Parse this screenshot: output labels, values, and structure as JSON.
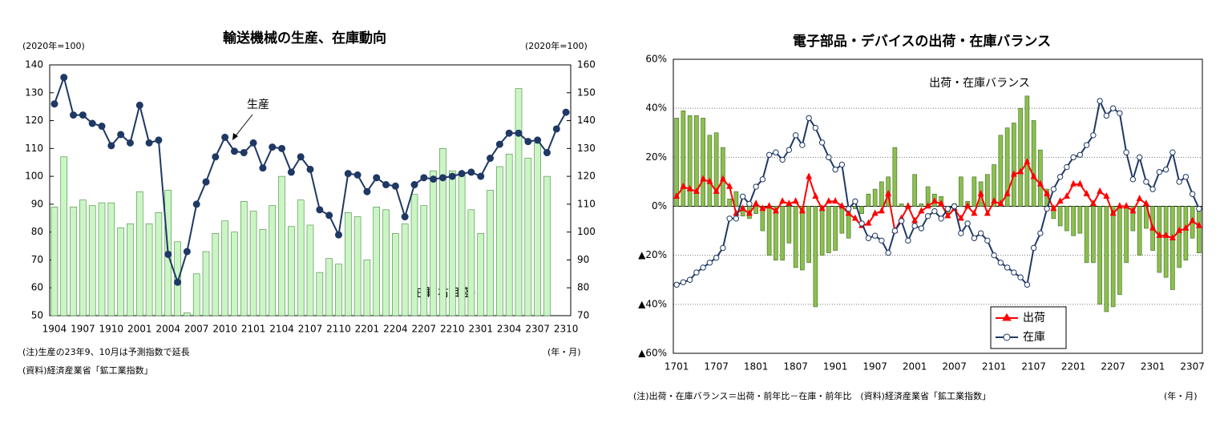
{
  "chart_data": [
    {
      "type": "bar_line",
      "title": "輸送機械の生産、在庫動向",
      "y_unit": "(2020年=100)",
      "y2_unit": "(2020年=100)",
      "x_unit": "(年・月)",
      "notes": [
        "(注)生産の23年9、10月は予測指数で延長",
        "(資料)経済産業省「鉱工業指数」"
      ],
      "categories": [
        "1904",
        null,
        null,
        "1907",
        null,
        null,
        "1910",
        null,
        null,
        "2001",
        null,
        null,
        "2004",
        null,
        null,
        "2007",
        null,
        null,
        "2010",
        null,
        null,
        "2101",
        null,
        null,
        "2104",
        null,
        null,
        "2107",
        null,
        null,
        "2110",
        null,
        null,
        "2201",
        null,
        null,
        "2204",
        null,
        null,
        "2207",
        null,
        null,
        "2210",
        null,
        null,
        "2301",
        null,
        null,
        "2304",
        null,
        null,
        "2307",
        null,
        null,
        "2310"
      ],
      "ylim": [
        50,
        140
      ],
      "yticks": [
        50,
        60,
        70,
        80,
        90,
        100,
        110,
        120,
        130,
        140
      ],
      "y2lim": [
        70,
        160
      ],
      "y2ticks": [
        70,
        80,
        90,
        100,
        110,
        120,
        130,
        140,
        150,
        160
      ],
      "grid": false,
      "series": [
        {
          "name": "在庫(右目盛)",
          "kind": "bar",
          "axis": "y2",
          "color": "#ccf5c6",
          "stroke": "#3f8a3a",
          "values": [
            109,
            127,
            109,
            111.5,
            109.5,
            110.5,
            110.5,
            101.5,
            103,
            114.5,
            103,
            107,
            115,
            96.5,
            71,
            85,
            93,
            99.5,
            104,
            100,
            111,
            107.5,
            101,
            109.5,
            120,
            102,
            111.5,
            102.5,
            85.5,
            90.5,
            88.5,
            107,
            105.5,
            90,
            109,
            108,
            99.5,
            103,
            113.5,
            109.5,
            122,
            130,
            122,
            121,
            108,
            99.5,
            115,
            123.5,
            128,
            151.5,
            126.5,
            132,
            120,
            null,
            null
          ]
        },
        {
          "name": "生産",
          "kind": "line",
          "axis": "y",
          "color": "#1f3864",
          "marker": "circle",
          "marker_fill": "#1f3864",
          "values": [
            126,
            135.5,
            122,
            122,
            119,
            118,
            111,
            115,
            112,
            125.5,
            112,
            113,
            72,
            62,
            73,
            90,
            98,
            107,
            114,
            109,
            108.5,
            112,
            103,
            110.5,
            110,
            101.5,
            107,
            102.5,
            88,
            86,
            79,
            101,
            100.5,
            94.5,
            99.5,
            97,
            96.5,
            85.5,
            97,
            99.5,
            99,
            99.5,
            100,
            101,
            101.5,
            100,
            106.5,
            111.5,
            115.5,
            115.5,
            112.5,
            113,
            108.5,
            117,
            123
          ]
        }
      ]
    },
    {
      "type": "bar_line",
      "title": "電子部品・デバイスの出荷・在庫バランス",
      "x_unit": "(年・月)",
      "notes": [
        "(注)出荷・在庫バランス＝出荷・前年比－在庫・前年比　(資料)経済産業省「鉱工業指数」"
      ],
      "categories": [
        "1701",
        null,
        null,
        null,
        null,
        null,
        "1707",
        null,
        null,
        null,
        null,
        null,
        "1801",
        null,
        null,
        null,
        null,
        null,
        "1807",
        null,
        null,
        null,
        null,
        null,
        "1901",
        null,
        null,
        null,
        null,
        null,
        "1907",
        null,
        null,
        null,
        null,
        null,
        "2001",
        null,
        null,
        null,
        null,
        null,
        "2007",
        null,
        null,
        null,
        null,
        null,
        "2101",
        null,
        null,
        null,
        null,
        null,
        "2107",
        null,
        null,
        null,
        null,
        null,
        "2201",
        null,
        null,
        null,
        null,
        null,
        "2207",
        null,
        null,
        null,
        null,
        null,
        "2301",
        null,
        null,
        null,
        null,
        null,
        "2307",
        null
      ],
      "ylim": [
        -60,
        60
      ],
      "yticks": [
        {
          "value": -60,
          "label": "▲60%"
        },
        {
          "value": -40,
          "label": "▲40%"
        },
        {
          "value": -20,
          "label": "▲20%"
        },
        {
          "value": 0,
          "label": "0%"
        },
        {
          "value": 20,
          "label": "20%"
        },
        {
          "value": 40,
          "label": "40%"
        },
        {
          "value": 60,
          "label": "60%"
        }
      ],
      "grid": true,
      "legend": "bottom-center",
      "series": [
        {
          "name": "出荷・在庫バランス",
          "kind": "bar",
          "axis": "y",
          "color": "#8cbf4f",
          "stroke": "#3d6b1f",
          "legend": false,
          "values": [
            36,
            39,
            37,
            37,
            36,
            29,
            30,
            24,
            3,
            6,
            -4,
            -5,
            -3,
            -10,
            -20,
            -22,
            -22,
            -15,
            -25,
            -26,
            -23,
            -41,
            -20,
            -19,
            -18,
            -11,
            -13,
            -1,
            -3,
            5,
            7,
            10,
            12,
            24,
            1,
            -1,
            13,
            1,
            8,
            5,
            4,
            -3,
            1,
            12,
            2,
            12,
            10,
            13,
            17,
            29,
            32,
            34,
            40,
            45,
            35,
            23,
            7,
            -5,
            -8,
            -10,
            -12,
            -11,
            -23,
            -23,
            -40,
            -43,
            -41,
            -36,
            -23,
            -10,
            -20,
            -9,
            -18,
            -27,
            -29,
            -34,
            -25,
            -22,
            -13,
            -19
          ]
        },
        {
          "name": "出荷",
          "kind": "line",
          "axis": "y",
          "color": "#ff0000",
          "marker": "triangle",
          "marker_fill": "#ff0000",
          "legend": true,
          "values": [
            4,
            8,
            7,
            6,
            11,
            10,
            6,
            11,
            8,
            -3,
            -1,
            -3,
            1,
            -1,
            0,
            -2,
            2,
            1,
            2,
            -2,
            12,
            4,
            -1,
            2,
            2,
            0,
            -3,
            -5,
            -8,
            -7,
            -3,
            -2,
            5,
            -10,
            -5,
            0,
            -6,
            -2,
            0,
            2,
            1,
            -4,
            -1,
            -5,
            0,
            -3,
            5,
            -3,
            2,
            1,
            5,
            13,
            14,
            18,
            12,
            9,
            5,
            -1,
            2,
            4,
            9,
            9,
            5,
            1,
            6,
            4,
            -3,
            0,
            0,
            -2,
            3,
            1,
            -9,
            -12,
            -12,
            -13,
            -10,
            -9,
            -6,
            -8
          ]
        },
        {
          "name": "在庫",
          "kind": "line",
          "axis": "y",
          "color": "#1f3864",
          "marker": "circle",
          "marker_fill": "#ffffff",
          "legend": true,
          "values": [
            -32,
            -31,
            -30,
            -27,
            -25,
            -23,
            -21,
            -17,
            -5,
            -5,
            4,
            1,
            8,
            11,
            21,
            22,
            19,
            23,
            29,
            25,
            36,
            32,
            26,
            20,
            15,
            17,
            -1,
            2,
            -7,
            -13,
            -12,
            -14,
            -19,
            -10,
            -6,
            -14,
            -8,
            -9,
            -4,
            -2,
            -5,
            -1,
            0,
            -11,
            -7,
            -13,
            -11,
            -14,
            -20,
            -23,
            -25,
            -27,
            -29,
            -32,
            -17,
            -11,
            -1,
            7,
            12,
            16,
            20,
            21,
            25,
            29,
            43,
            37,
            40,
            38,
            22,
            11,
            20,
            10,
            7,
            14,
            15,
            22,
            10,
            12,
            5,
            -1
          ]
        }
      ]
    }
  ]
}
